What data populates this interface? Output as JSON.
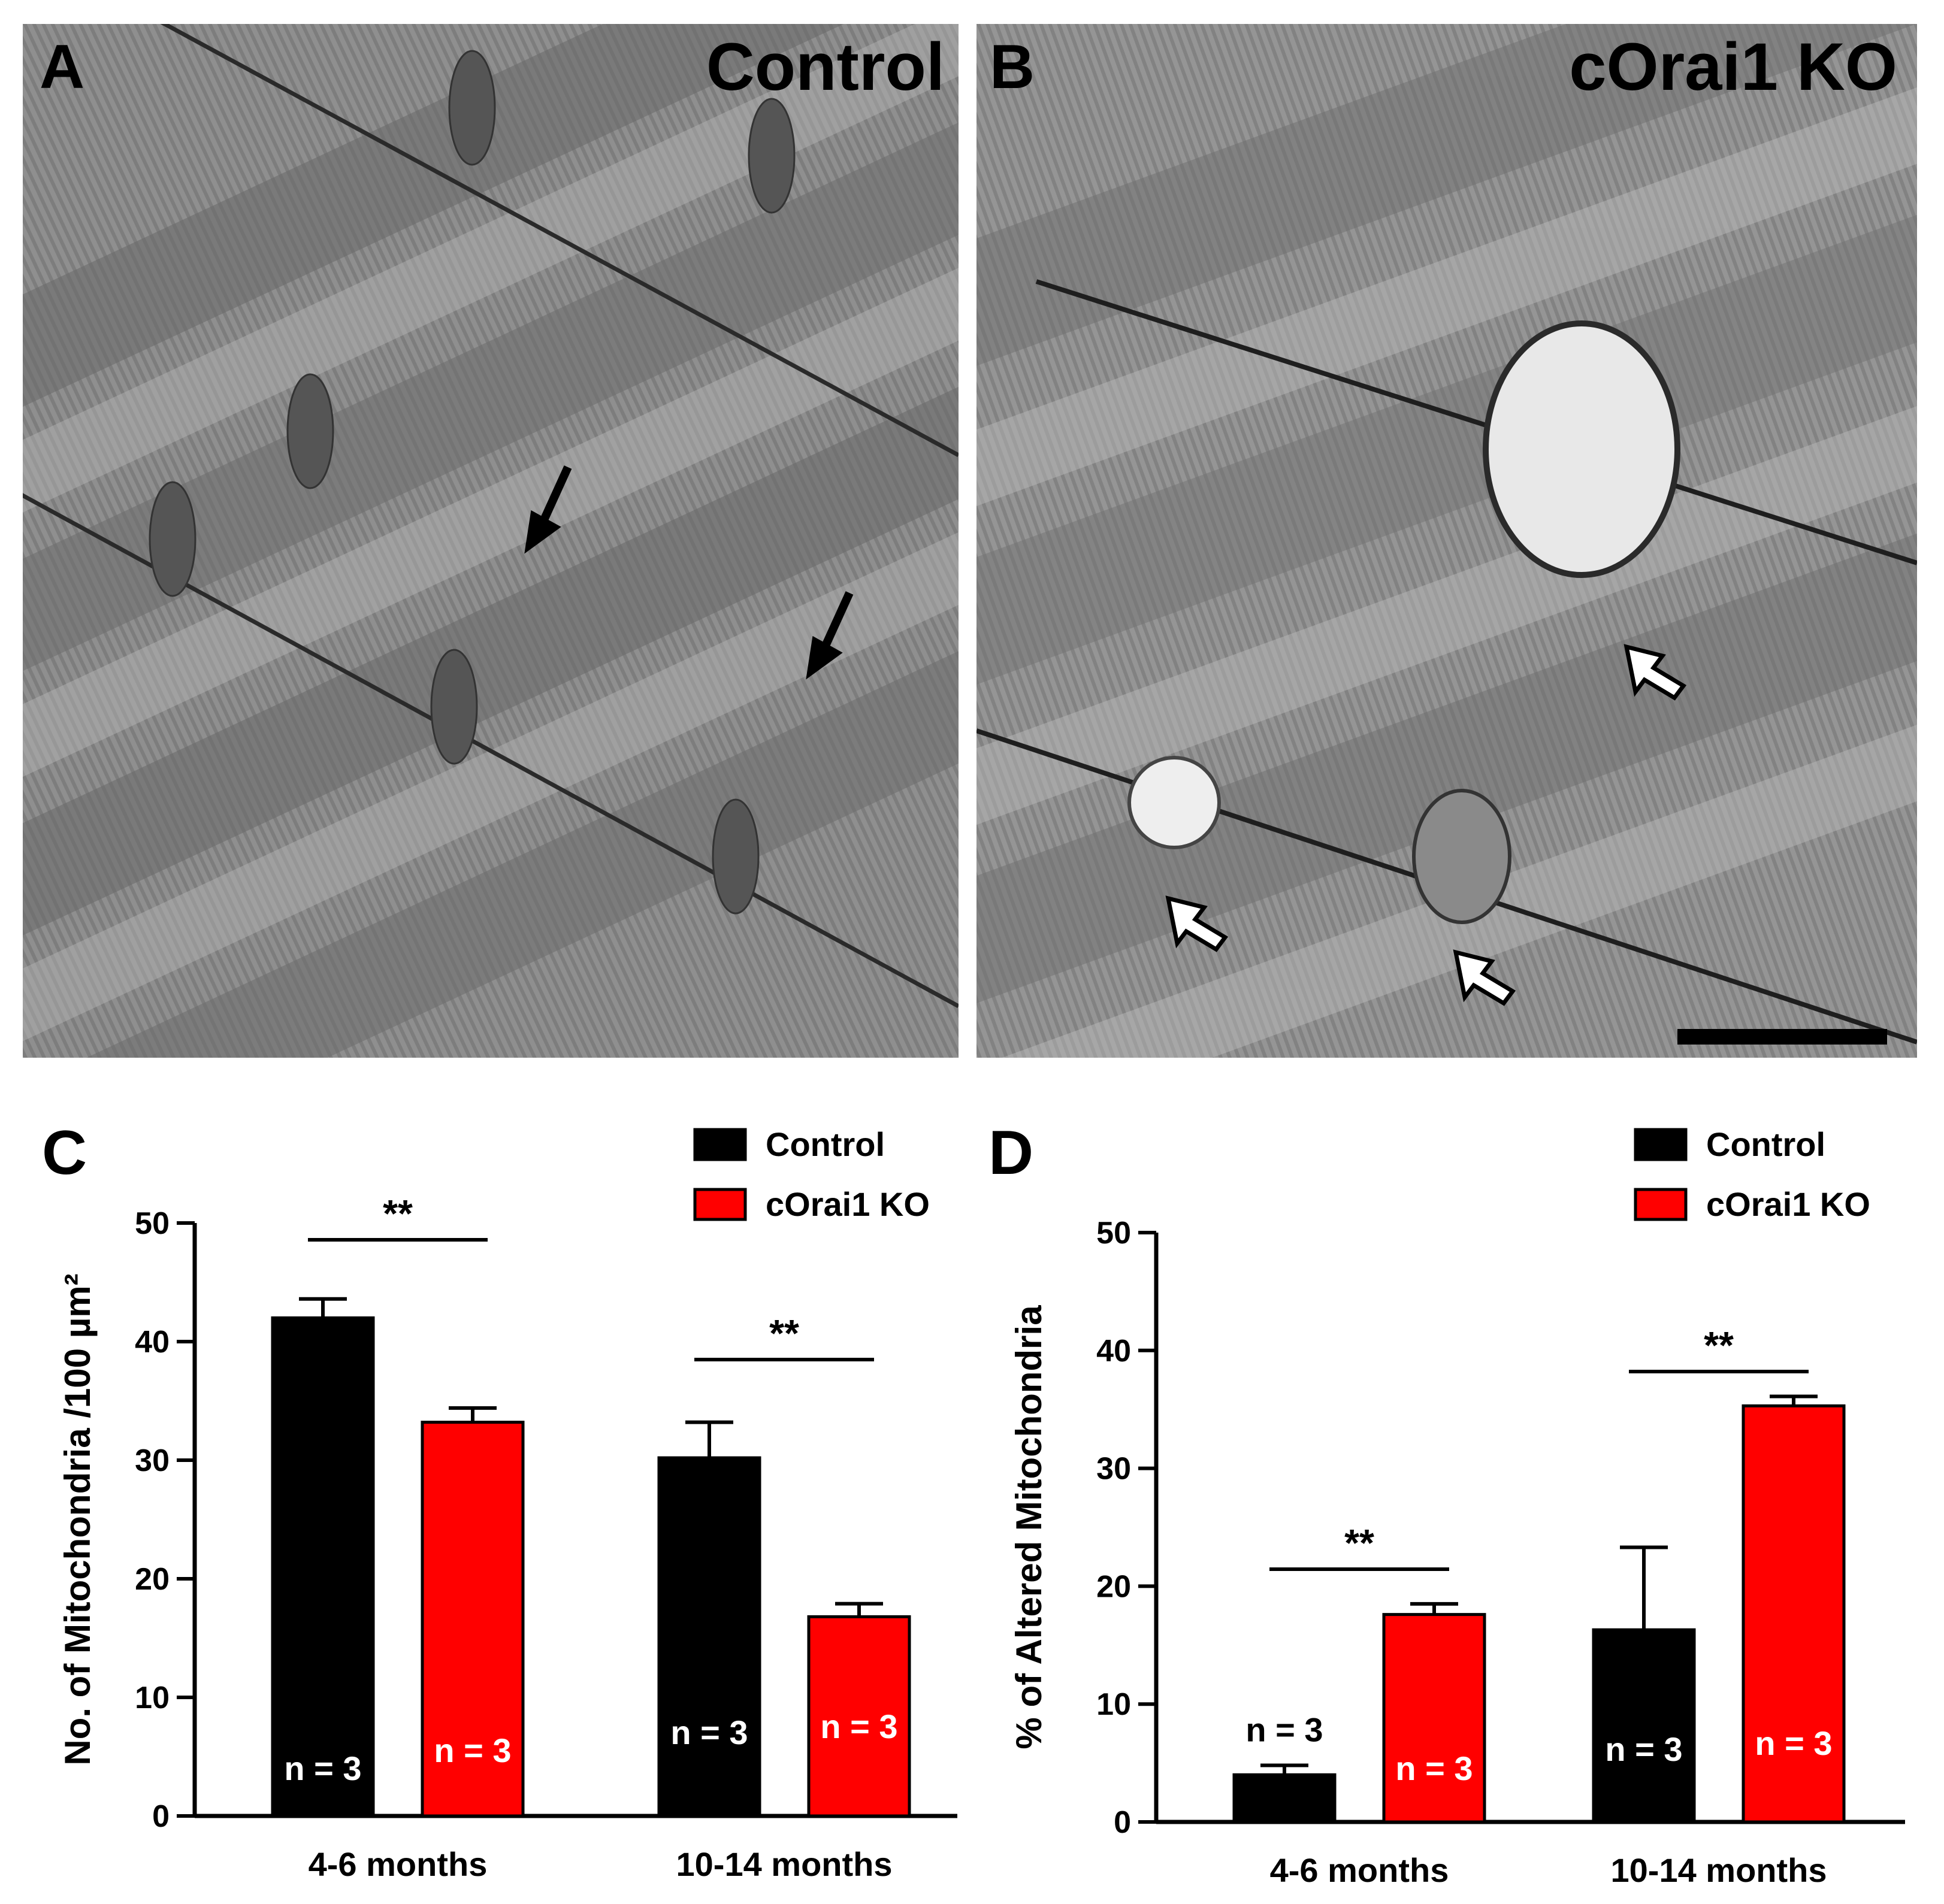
{
  "colors": {
    "control": "#000000",
    "ko": "#ff0000",
    "axis": "#000000",
    "n_label_text": "#ffffff"
  },
  "micrographs": [
    {
      "letter": "A",
      "condition": "Control",
      "markers": "filled-arrow-icon"
    },
    {
      "letter": "B",
      "condition": "cOrai1 KO",
      "markers": "open-arrow-icon",
      "scale_bar": true
    }
  ],
  "chart_data": [
    {
      "letter": "C",
      "type": "bar",
      "title": "",
      "xlabel": "",
      "ylabel": "No. of Mitochondria /100 µm²",
      "ylim": [
        0,
        50
      ],
      "yticks": [
        "0",
        "10",
        "20",
        "30",
        "40",
        "50"
      ],
      "ytick_values": [
        0,
        10,
        20,
        30,
        40,
        50
      ],
      "categories": [
        "4-6 months",
        "10-14 months"
      ],
      "legend": "top-right",
      "grid": false,
      "series": [
        {
          "name": "Control",
          "color": "#000000",
          "values": [
            42,
            30.2
          ],
          "errors": [
            1.6,
            3.0
          ],
          "n_labels": [
            "n = 3",
            "n = 3"
          ]
        },
        {
          "name": "cOrai1 KO",
          "color": "#ff0000",
          "values": [
            33.2,
            16.8
          ],
          "errors": [
            1.2,
            1.1
          ],
          "n_labels": [
            "n = 3",
            "n = 3"
          ]
        }
      ],
      "significance": [
        "**",
        "**"
      ]
    },
    {
      "letter": "D",
      "type": "bar",
      "title": "",
      "xlabel": "",
      "ylabel": "% of Altered Mitochondria",
      "ylim": [
        0,
        50
      ],
      "yticks": [
        "0",
        "10",
        "20",
        "30",
        "40",
        "50"
      ],
      "ytick_values": [
        0,
        10,
        20,
        30,
        40,
        50
      ],
      "categories": [
        "4-6 months",
        "10-14 months"
      ],
      "legend": "top-right",
      "grid": false,
      "series": [
        {
          "name": "Control",
          "color": "#000000",
          "values": [
            4.0,
            16.3
          ],
          "errors": [
            0.8,
            7.0
          ],
          "n_labels": [
            "n = 3",
            "n = 3"
          ]
        },
        {
          "name": "cOrai1 KO",
          "color": "#ff0000",
          "values": [
            17.6,
            35.3
          ],
          "errors": [
            0.9,
            0.8
          ],
          "n_labels": [
            "n = 3",
            "n = 3"
          ]
        }
      ],
      "significance": [
        "**",
        "**"
      ]
    }
  ]
}
